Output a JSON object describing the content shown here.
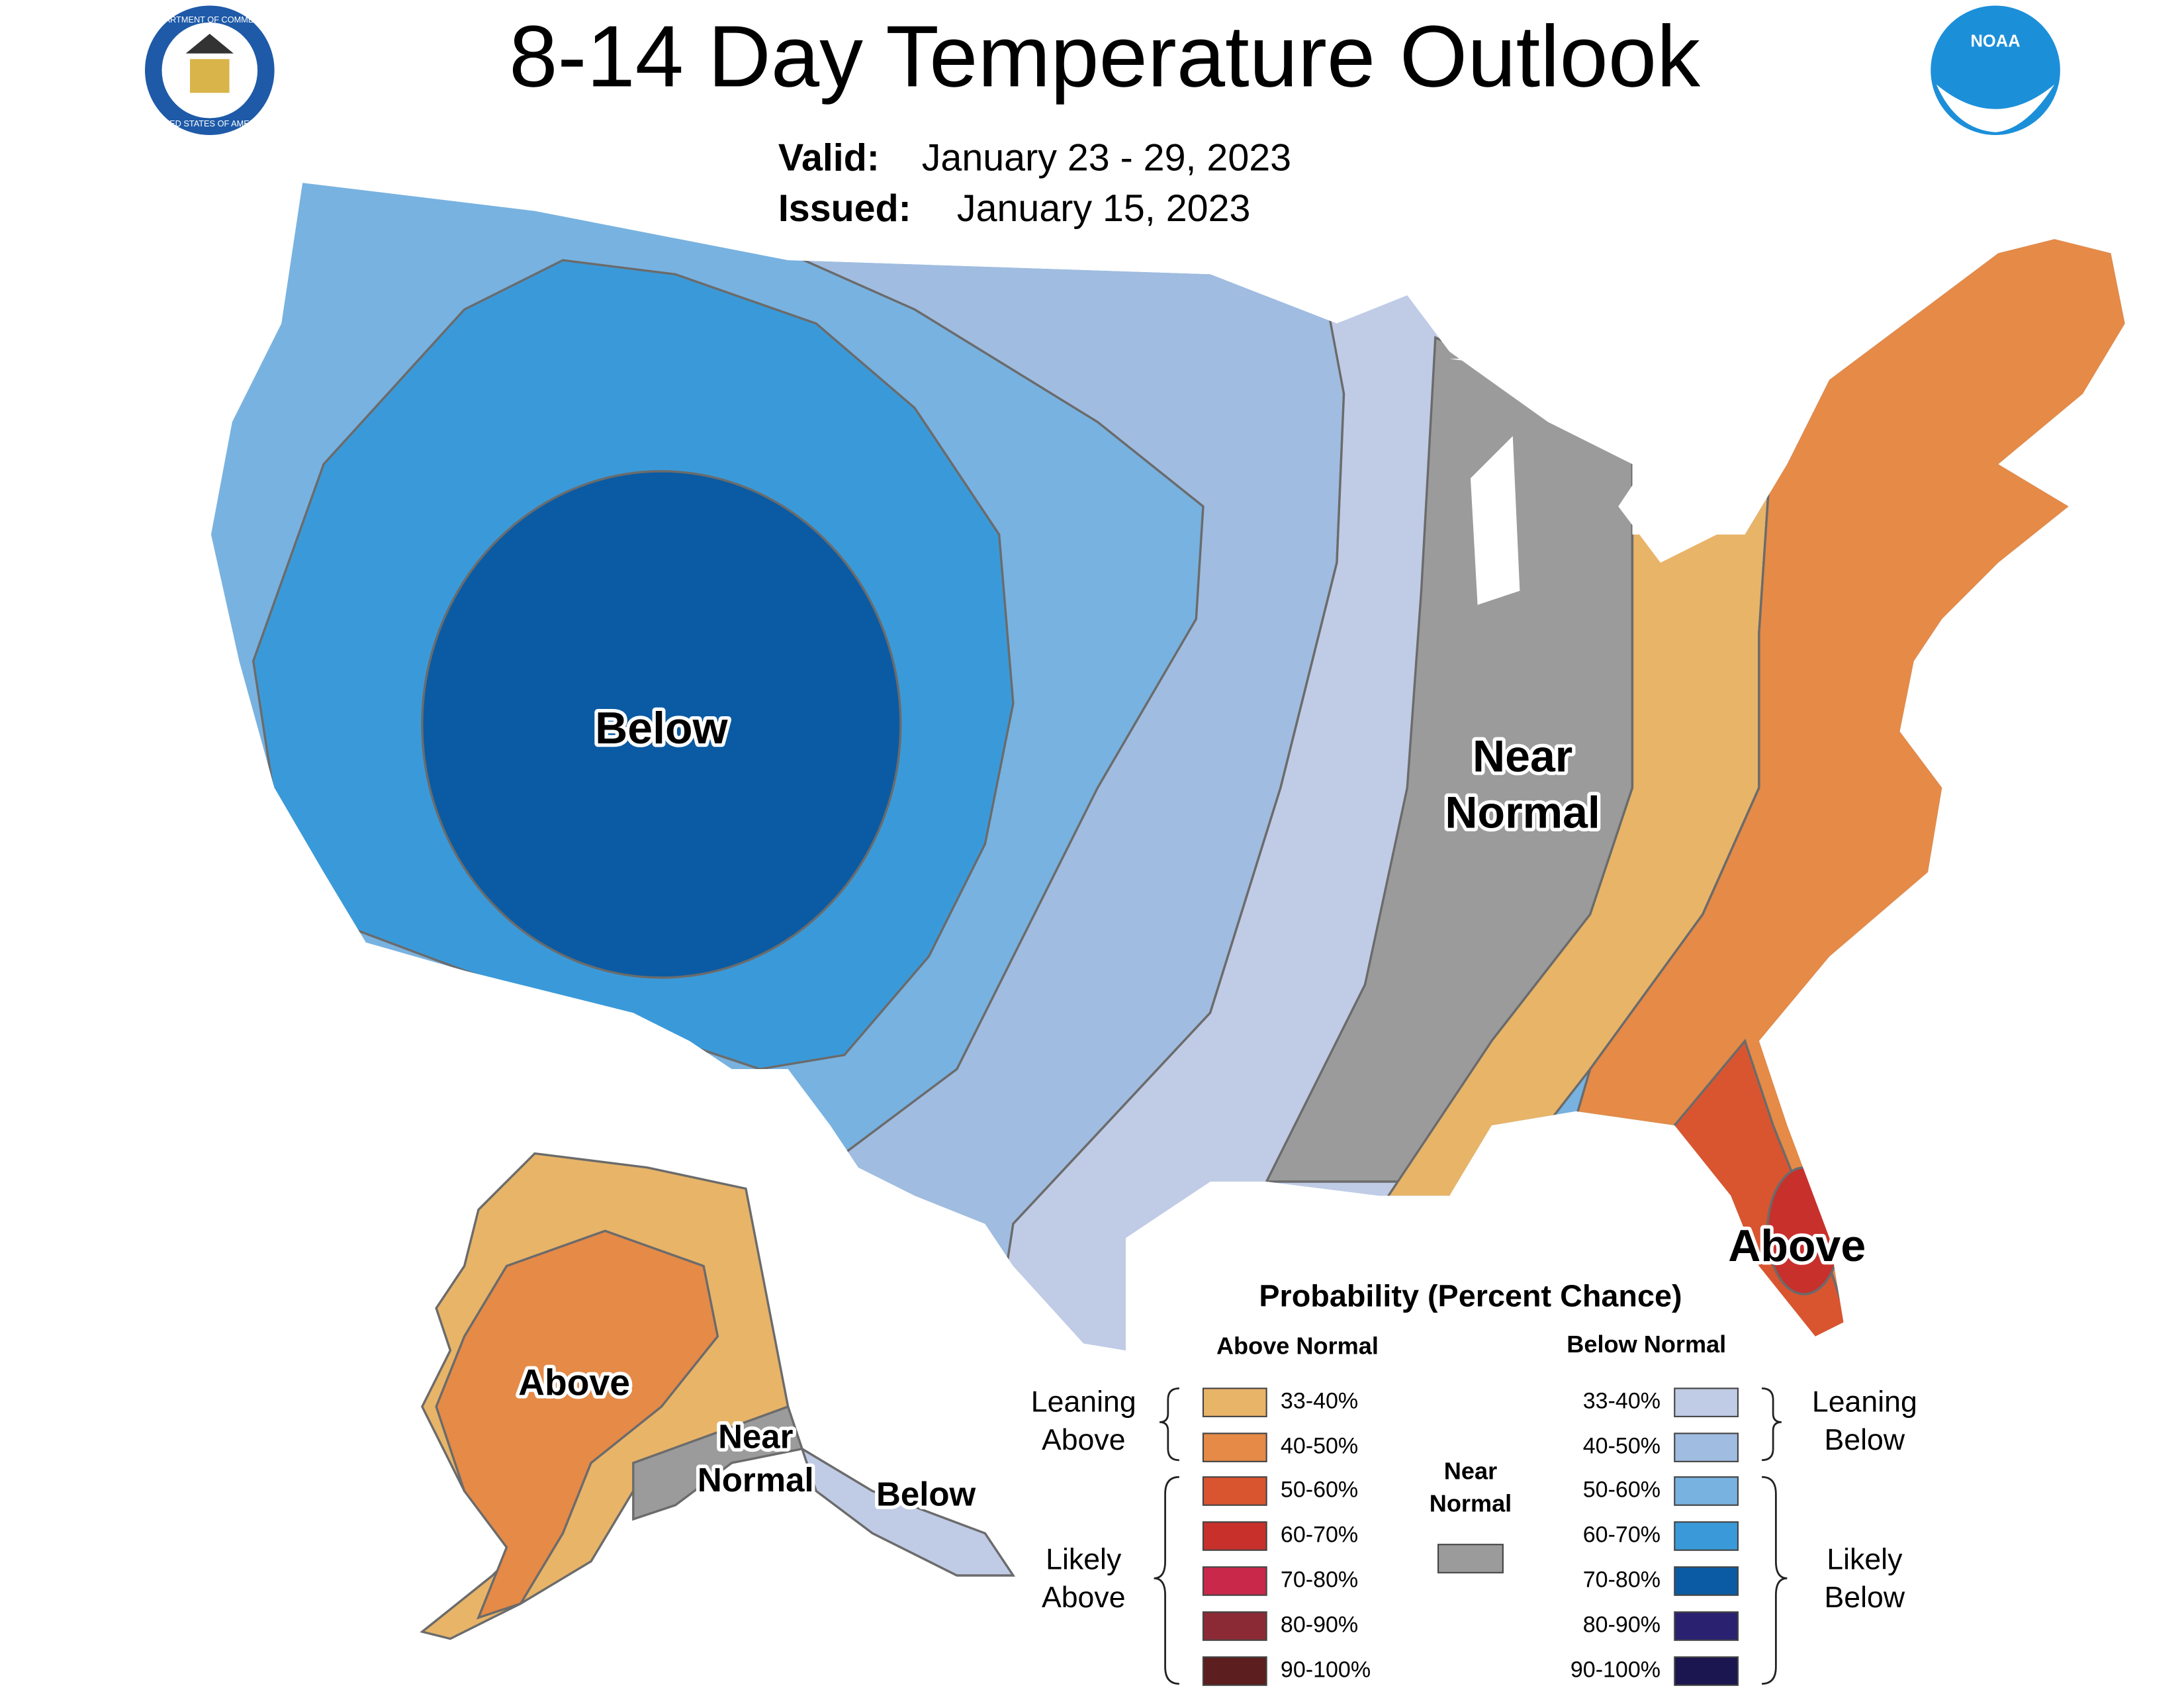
{
  "header": {
    "title": "8-14 Day Temperature Outlook",
    "valid_label": "Valid:",
    "valid_dates": "January 23 - 29, 2023",
    "issued_label": "Issued:",
    "issued_date": "January 15, 2023"
  },
  "logos": {
    "commerce_top": "DEPARTMENT OF COMMERCE",
    "commerce_bottom": "UNITED STATES OF AMERICA",
    "noaa": "NOAA"
  },
  "map_labels": {
    "conus_below": "Below",
    "conus_near_normal": [
      "Near",
      "Normal"
    ],
    "conus_above": "Above",
    "alaska_above": "Above",
    "alaska_near_normal": [
      "Near",
      "Normal"
    ],
    "alaska_below": "Below"
  },
  "legend": {
    "title": "Probability (Percent Chance)",
    "above_heading": "Above Normal",
    "below_heading": "Below Normal",
    "leaning_above": [
      "Leaning",
      "Above"
    ],
    "likely_above": [
      "Likely",
      "Above"
    ],
    "leaning_below": [
      "Leaning",
      "Below"
    ],
    "likely_below": [
      "Likely",
      "Below"
    ],
    "near_normal": [
      "Near",
      "Normal"
    ],
    "near_normal_color": "#9b9b9b",
    "above": [
      {
        "range": "33-40%",
        "color": "#e8b468"
      },
      {
        "range": "40-50%",
        "color": "#e58a47"
      },
      {
        "range": "50-60%",
        "color": "#d95530"
      },
      {
        "range": "60-70%",
        "color": "#c8302c"
      },
      {
        "range": "70-80%",
        "color": "#c9284a"
      },
      {
        "range": "80-90%",
        "color": "#8b2a35"
      },
      {
        "range": "90-100%",
        "color": "#5c1e1e"
      }
    ],
    "below": [
      {
        "range": "33-40%",
        "color": "#c0cbe6"
      },
      {
        "range": "40-50%",
        "color": "#a0bce0"
      },
      {
        "range": "50-60%",
        "color": "#78b2e0"
      },
      {
        "range": "60-70%",
        "color": "#3a9ad9"
      },
      {
        "range": "70-80%",
        "color": "#0a5ba3"
      },
      {
        "range": "80-90%",
        "color": "#2a2170"
      },
      {
        "range": "90-100%",
        "color": "#1b1550"
      }
    ]
  }
}
